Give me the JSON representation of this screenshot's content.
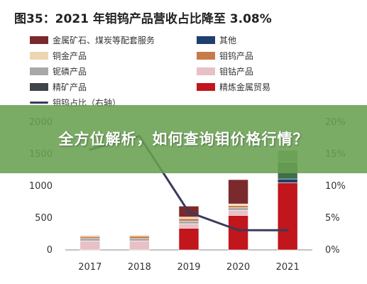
{
  "chart_data": {
    "type": "bar",
    "title": "图35：2021 年钼钨产品营收占比降至 3.08%",
    "categories": [
      "2017",
      "2018",
      "2019",
      "2020",
      "2021"
    ],
    "y_left_ticks": [
      "0",
      "500",
      "1000",
      "1500",
      "2000"
    ],
    "y_left_range": [
      0,
      2000
    ],
    "y_right_ticks": [
      "0%",
      "5%",
      "10%",
      "15%",
      "20%"
    ],
    "y_right_range": [
      0,
      20
    ],
    "stacked": true,
    "series": [
      {
        "name": "精炼金属贸易",
        "color": "#c0161c",
        "values": [
          0,
          0,
          340,
          540,
          1050
        ]
      },
      {
        "name": "精矿产品",
        "color": "#404448",
        "values": [
          0,
          0,
          0,
          0,
          0
        ]
      },
      {
        "name": "钼钴产品",
        "color": "#e8c0c6",
        "values": [
          140,
          140,
          70,
          80,
          0
        ]
      },
      {
        "name": "铌磷产品",
        "color": "#a8a8a8",
        "values": [
          40,
          40,
          40,
          40,
          0
        ]
      },
      {
        "name": "钼钨产品",
        "color": "#c87a48",
        "values": [
          30,
          35,
          40,
          35,
          0
        ]
      },
      {
        "name": "铜金产品",
        "color": "#ecd6b0",
        "values": [
          20,
          20,
          25,
          25,
          0
        ]
      },
      {
        "name": "其他",
        "color": "#1f3f6e",
        "values": [
          0,
          0,
          0,
          0,
          60
        ]
      },
      {
        "name": "金属矿石、煤炭等配套服务",
        "color": "#7a2a2c",
        "values": [
          0,
          0,
          170,
          380,
          0
        ]
      }
    ],
    "extra_segments_2021": [
      {
        "color": "#3f6f48",
        "value": 260
      },
      {
        "color": "#8aa888",
        "value": 190
      }
    ],
    "line": {
      "name": "钼钨占比（右轴）",
      "color": "#3a3a5c",
      "axis": "right",
      "values": [
        15.7,
        17.8,
        5.9,
        3.1,
        3.08
      ]
    },
    "legend_position": "top"
  },
  "overlay": {
    "text": "全方位解析，如何查询钼价格行情？"
  }
}
